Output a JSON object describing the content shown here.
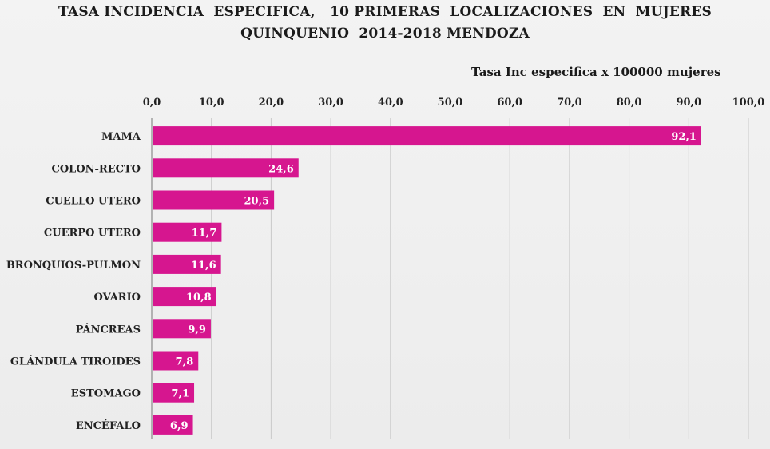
{
  "title_lines": [
    "TASA INCIDENCIA  ESPECIFICA,   10 PRIMERAS  LOCALIZACIONES  EN  MUJERES",
    "QUINQUENIO  2014-2018 MENDOZA"
  ],
  "chart_data": {
    "type": "bar",
    "orientation": "horizontal",
    "title": "TASA INCIDENCIA  ESPECIFICA,   10 PRIMERAS  LOCALIZACIONES  EN  MUJERES QUINQUENIO  2014-2018 MENDOZA",
    "xlabel": "Tasa Inc especifica x 100000 mujeres",
    "ylabel": "",
    "categories": [
      "MAMA",
      "COLON-RECTO",
      "CUELLO UTERO",
      "CUERPO UTERO",
      "BRONQUIOS-PULMON",
      "OVARIO",
      "PÁNCREAS",
      "GLÁNDULA TIROIDES",
      "ESTOMAGO",
      "ENCÉFALO"
    ],
    "values": [
      92.1,
      24.6,
      20.5,
      11.7,
      11.6,
      10.8,
      9.9,
      7.8,
      7.1,
      6.9
    ],
    "data_labels": [
      "92,1",
      "24,6",
      "20,5",
      "11,7",
      "11,6",
      "10,8",
      "9,9",
      "7,8",
      "7,1",
      "6,9"
    ],
    "xlim": [
      0,
      100
    ],
    "x_ticks": [
      0,
      10,
      20,
      30,
      40,
      50,
      60,
      70,
      80,
      90,
      100
    ],
    "x_tick_labels": [
      "0,0",
      "10,0",
      "20,0",
      "30,0",
      "40,0",
      "50,0",
      "60,0",
      "70,0",
      "80,0",
      "90,0",
      "100,0"
    ],
    "axis_position": "top",
    "grid": true,
    "legend": "none",
    "bar_color": "#d6168f",
    "grid_color": "#c9c9c9"
  }
}
